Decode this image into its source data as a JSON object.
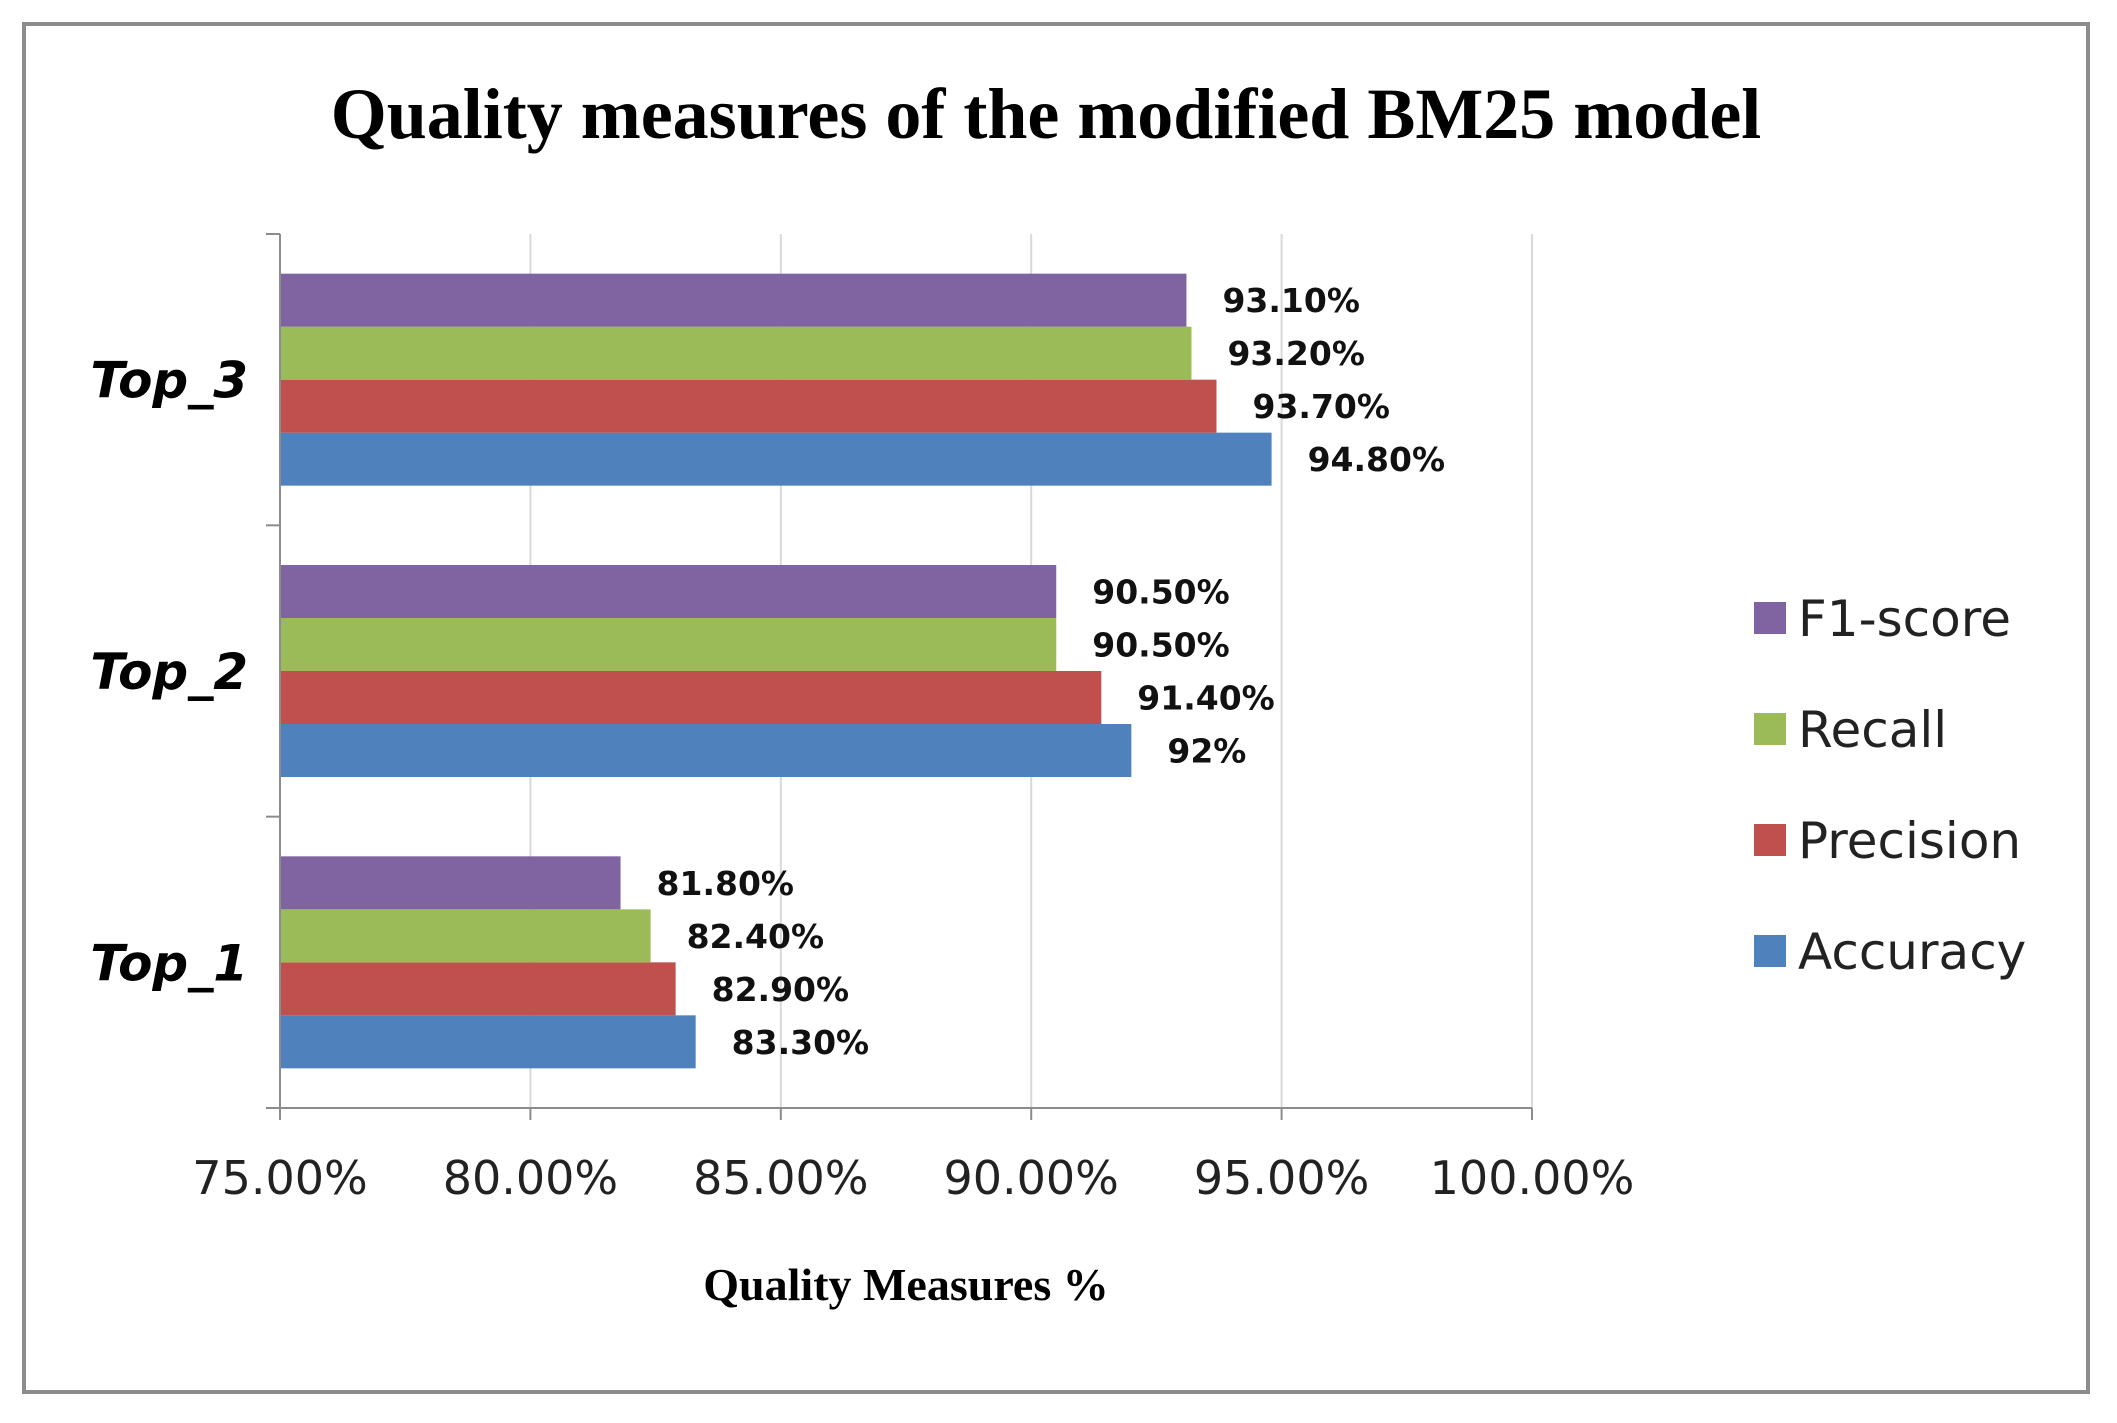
{
  "chart_data": {
    "type": "bar",
    "orientation": "horizontal",
    "title": "Quality measures of the modified BM25 model",
    "xlabel": "Quality Measures %",
    "ylabel": "",
    "xlim": [
      75,
      100
    ],
    "xticks": [
      75,
      80,
      85,
      90,
      95,
      100
    ],
    "xtick_labels": [
      "75.00%",
      "80.00%",
      "85.00%",
      "90.00%",
      "95.00%",
      "100.00%"
    ],
    "categories": [
      "Top_1",
      "Top_2",
      "Top_3"
    ],
    "series": [
      {
        "name": "Accuracy",
        "color": "#4f81bd",
        "values": [
          83.3,
          92.0,
          94.8
        ],
        "labels": [
          "83.30%",
          "92%",
          "94.80%"
        ]
      },
      {
        "name": "Precision",
        "color": "#c0504d",
        "values": [
          82.9,
          91.4,
          93.7
        ],
        "labels": [
          "82.90%",
          "91.40%",
          "93.70%"
        ]
      },
      {
        "name": "Recall",
        "color": "#9bbb59",
        "values": [
          82.4,
          90.5,
          93.2
        ],
        "labels": [
          "82.40%",
          "90.50%",
          "93.20%"
        ]
      },
      {
        "name": "F1-score",
        "color": "#8064a2",
        "values": [
          81.8,
          90.5,
          93.1
        ],
        "labels": [
          "81.80%",
          "90.50%",
          "93.10%"
        ]
      }
    ],
    "legend_order": [
      "F1-score",
      "Recall",
      "Precision",
      "Accuracy"
    ],
    "legend_position": "right",
    "grid": true
  }
}
